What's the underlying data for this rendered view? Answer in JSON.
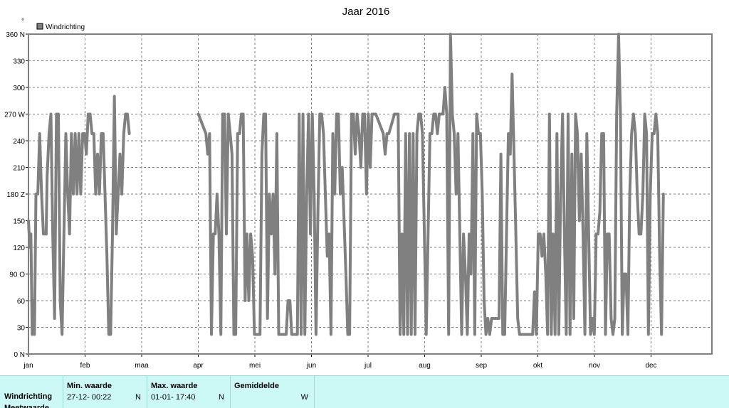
{
  "chart_data": {
    "type": "line",
    "title": "Jaar 2016",
    "legend": {
      "label": "Windrichting",
      "position": "top-left",
      "marker": "°"
    },
    "xlabel": "",
    "ylabel": "",
    "ylim": [
      0,
      360
    ],
    "y_ticks": [
      {
        "value": 360,
        "label": "360 N"
      },
      {
        "value": 330,
        "label": "330"
      },
      {
        "value": 300,
        "label": "300"
      },
      {
        "value": 270,
        "label": "270 W"
      },
      {
        "value": 240,
        "label": "240"
      },
      {
        "value": 210,
        "label": "210"
      },
      {
        "value": 180,
        "label": "180 Z"
      },
      {
        "value": 150,
        "label": "150"
      },
      {
        "value": 120,
        "label": "120"
      },
      {
        "value": 90,
        "label": "90 O"
      },
      {
        "value": 60,
        "label": "60"
      },
      {
        "value": 30,
        "label": "30"
      },
      {
        "value": 0,
        "label": "0 N"
      }
    ],
    "x_ticks": [
      "jan",
      "feb",
      "maa",
      "apr",
      "mei",
      "jun",
      "jul",
      "aug",
      "sep",
      "okt",
      "nov",
      "dec"
    ],
    "grid": true,
    "color": "#808080",
    "series": [
      {
        "name": "Windrichting",
        "x_unit": "day_of_year",
        "points": [
          [
            0,
            150
          ],
          [
            0.7,
            120
          ],
          [
            1.3,
            135
          ],
          [
            2,
            22
          ],
          [
            2.6,
            60
          ],
          [
            3.2,
            22
          ],
          [
            4,
            180
          ],
          [
            5,
            180
          ],
          [
            6,
            248
          ],
          [
            7,
            180
          ],
          [
            8,
            135
          ],
          [
            9.5,
            135
          ],
          [
            10,
            200
          ],
          [
            11,
            248
          ],
          [
            12,
            270
          ],
          [
            13,
            135
          ],
          [
            14,
            40
          ],
          [
            15,
            270
          ],
          [
            16,
            270
          ],
          [
            17,
            60
          ],
          [
            18,
            22
          ],
          [
            19,
            135
          ],
          [
            20,
            248
          ],
          [
            21,
            180
          ],
          [
            22,
            135
          ],
          [
            23,
            248
          ],
          [
            24,
            180
          ],
          [
            25,
            248
          ],
          [
            26,
            180
          ],
          [
            27,
            248
          ],
          [
            28,
            180
          ],
          [
            29,
            248
          ],
          [
            30,
            248
          ],
          [
            31,
            225
          ],
          [
            32,
            270
          ],
          [
            33,
            270
          ],
          [
            34,
            248
          ],
          [
            35,
            248
          ],
          [
            36,
            180
          ],
          [
            37,
            225
          ],
          [
            38,
            180
          ],
          [
            39,
            248
          ],
          [
            40,
            248
          ],
          [
            41,
            180
          ],
          [
            42,
            110
          ],
          [
            43,
            22
          ],
          [
            44,
            22
          ],
          [
            45,
            135
          ],
          [
            46,
            290
          ],
          [
            47,
            135
          ],
          [
            48,
            180
          ],
          [
            49,
            225
          ],
          [
            50,
            180
          ],
          [
            51,
            248
          ],
          [
            52,
            270
          ],
          [
            53,
            270
          ],
          [
            54,
            248
          ],
          null,
          [
            91,
            270
          ],
          [
            95,
            248
          ],
          [
            96,
            225
          ],
          [
            97,
            248
          ],
          [
            98,
            22
          ],
          [
            99,
            135
          ],
          [
            100,
            135
          ],
          [
            101,
            180
          ],
          [
            102,
            135
          ],
          [
            103,
            22
          ],
          [
            104,
            270
          ],
          [
            105,
            270
          ],
          [
            106,
            135
          ],
          [
            107,
            270
          ],
          [
            108,
            248
          ],
          [
            109,
            225
          ],
          [
            110,
            22
          ],
          [
            111,
            22
          ],
          [
            112,
            248
          ],
          [
            113,
            248
          ],
          [
            114,
            270
          ],
          [
            115,
            270
          ],
          [
            116,
            60
          ],
          [
            117,
            135
          ],
          [
            118,
            60
          ],
          [
            119,
            135
          ],
          [
            120,
            110
          ],
          [
            121,
            22
          ],
          [
            124,
            22
          ],
          [
            125,
            225
          ],
          [
            126,
            270
          ],
          [
            127,
            270
          ],
          [
            128,
            40
          ],
          [
            129,
            180
          ],
          [
            130,
            135
          ],
          [
            131,
            180
          ],
          [
            132,
            90
          ],
          [
            133,
            248
          ],
          [
            134,
            22
          ],
          [
            138,
            22
          ],
          [
            139,
            60
          ],
          [
            140,
            60
          ],
          [
            141,
            22
          ],
          [
            144,
            22
          ],
          [
            145,
            270
          ],
          [
            146,
            22
          ],
          [
            147,
            270
          ],
          [
            148,
            22
          ],
          [
            149,
            180
          ],
          [
            150,
            270
          ],
          [
            151,
            135
          ],
          [
            152,
            270
          ],
          [
            153,
            180
          ],
          [
            154,
            22
          ],
          [
            155,
            160
          ],
          [
            156,
            270
          ],
          [
            157,
            270
          ],
          [
            158,
            248
          ],
          [
            159,
            180
          ],
          [
            160,
            110
          ],
          [
            161,
            135
          ],
          [
            162,
            22
          ],
          [
            163,
            248
          ],
          [
            164,
            180
          ],
          [
            165,
            270
          ],
          [
            166,
            270
          ],
          [
            167,
            180
          ],
          [
            168,
            210
          ],
          [
            169,
            150
          ],
          [
            170,
            90
          ],
          [
            171,
            22
          ],
          [
            172,
            22
          ],
          [
            173,
            270
          ],
          [
            174,
            270
          ],
          [
            175,
            225
          ],
          [
            176,
            270
          ],
          [
            177,
            248
          ],
          [
            178,
            210
          ],
          [
            179,
            270
          ],
          [
            180,
            270
          ],
          [
            181,
            180
          ],
          [
            182,
            270
          ],
          [
            183,
            210
          ],
          [
            184,
            270
          ],
          [
            185,
            270
          ],
          [
            186,
            270
          ],
          [
            190,
            248
          ],
          [
            191,
            225
          ],
          [
            192,
            248
          ],
          [
            193,
            248
          ],
          [
            196,
            270
          ],
          [
            198,
            270
          ],
          [
            199,
            22
          ],
          [
            200,
            135
          ],
          [
            201,
            22
          ],
          [
            202,
            248
          ],
          [
            203,
            22
          ],
          [
            204,
            248
          ],
          [
            205,
            22
          ],
          [
            206,
            248
          ],
          [
            207,
            22
          ],
          [
            208,
            248
          ],
          [
            209,
            270
          ],
          [
            210,
            270
          ],
          [
            211,
            248
          ],
          [
            212,
            135
          ],
          [
            213,
            22
          ],
          [
            214,
            135
          ],
          [
            215,
            248
          ],
          [
            216,
            248
          ],
          [
            217,
            270
          ],
          [
            218,
            270
          ],
          [
            219,
            248
          ],
          [
            220,
            270
          ],
          [
            221,
            270
          ],
          [
            222,
            270
          ],
          [
            223,
            300
          ],
          [
            224,
            270
          ],
          [
            225,
            22
          ],
          [
            226,
            360
          ],
          [
            227,
            270
          ],
          [
            228,
            248
          ],
          [
            229,
            180
          ],
          [
            230,
            248
          ],
          [
            231,
            135
          ],
          [
            232,
            22
          ],
          [
            233,
            135
          ],
          [
            234,
            90
          ],
          [
            235,
            22
          ],
          [
            236,
            135
          ],
          [
            237,
            90
          ],
          [
            238,
            248
          ],
          [
            239,
            22
          ],
          [
            240,
            270
          ],
          [
            241,
            248
          ],
          [
            242,
            248
          ],
          [
            243,
            180
          ],
          [
            244,
            60
          ],
          [
            245,
            22
          ],
          [
            246,
            40
          ],
          [
            247,
            22
          ],
          [
            248,
            40
          ],
          [
            249,
            40
          ],
          [
            250,
            40
          ],
          [
            251,
            40
          ],
          [
            252,
            40
          ],
          [
            253,
            225
          ],
          [
            254,
            22
          ],
          [
            255,
            22
          ],
          [
            256,
            135
          ],
          [
            257,
            248
          ],
          [
            258,
            225
          ],
          [
            259,
            315
          ],
          [
            260,
            225
          ],
          [
            261,
            135
          ],
          [
            262,
            40
          ],
          [
            263,
            22
          ],
          [
            264,
            22
          ],
          [
            270,
            22
          ],
          [
            271,
            70
          ],
          [
            272,
            22
          ],
          [
            273,
            135
          ],
          [
            274,
            135
          ],
          [
            275,
            110
          ],
          [
            276,
            135
          ],
          [
            277,
            90
          ],
          [
            278,
            22
          ],
          [
            279,
            270
          ],
          [
            280,
            22
          ],
          [
            281,
            135
          ],
          [
            282,
            22
          ],
          [
            283,
            248
          ],
          [
            284,
            22
          ],
          [
            285,
            180
          ],
          [
            286,
            270
          ],
          [
            287,
            135
          ],
          [
            288,
            22
          ],
          [
            289,
            270
          ],
          [
            290,
            22
          ],
          [
            291,
            225
          ],
          [
            292,
            40
          ],
          [
            293,
            270
          ],
          [
            294,
            248
          ],
          [
            295,
            150
          ],
          [
            296,
            225
          ],
          [
            297,
            135
          ],
          [
            298,
            22
          ],
          [
            299,
            248
          ],
          [
            300,
            135
          ],
          [
            301,
            22
          ],
          [
            302,
            40
          ],
          [
            303,
            22
          ],
          [
            304,
            135
          ],
          [
            305,
            135
          ],
          [
            306,
            160
          ],
          [
            307,
            248
          ],
          [
            308,
            248
          ],
          [
            309,
            22
          ],
          [
            310,
            135
          ],
          [
            311,
            135
          ],
          [
            312,
            40
          ],
          [
            313,
            22
          ],
          [
            314,
            40
          ],
          [
            315,
            270
          ],
          [
            316,
            360
          ],
          [
            317,
            270
          ],
          [
            318,
            22
          ],
          [
            319,
            90
          ],
          [
            320,
            90
          ],
          [
            321,
            22
          ],
          [
            322,
            180
          ],
          [
            323,
            248
          ],
          [
            324,
            270
          ],
          [
            325,
            248
          ],
          [
            326,
            180
          ],
          [
            327,
            135
          ],
          [
            328,
            135
          ],
          [
            329,
            180
          ],
          [
            330,
            270
          ],
          [
            331,
            248
          ],
          [
            332,
            22
          ],
          [
            333,
            180
          ],
          [
            334,
            248
          ],
          [
            335,
            248
          ],
          [
            336,
            270
          ],
          [
            337,
            248
          ],
          [
            338,
            110
          ],
          [
            339,
            22
          ],
          [
            340,
            180
          ]
        ]
      }
    ]
  },
  "stats": {
    "row_label": "Windrichting",
    "row_label_2": "Meetwaarde",
    "min": {
      "header": "Min. waarde",
      "date": "27-12-  00:22",
      "dir": "N"
    },
    "max": {
      "header": "Max. waarde",
      "date": "01-01-  17:40",
      "dir": "N"
    },
    "avg": {
      "header": "Gemiddelde",
      "dir": "W"
    }
  }
}
